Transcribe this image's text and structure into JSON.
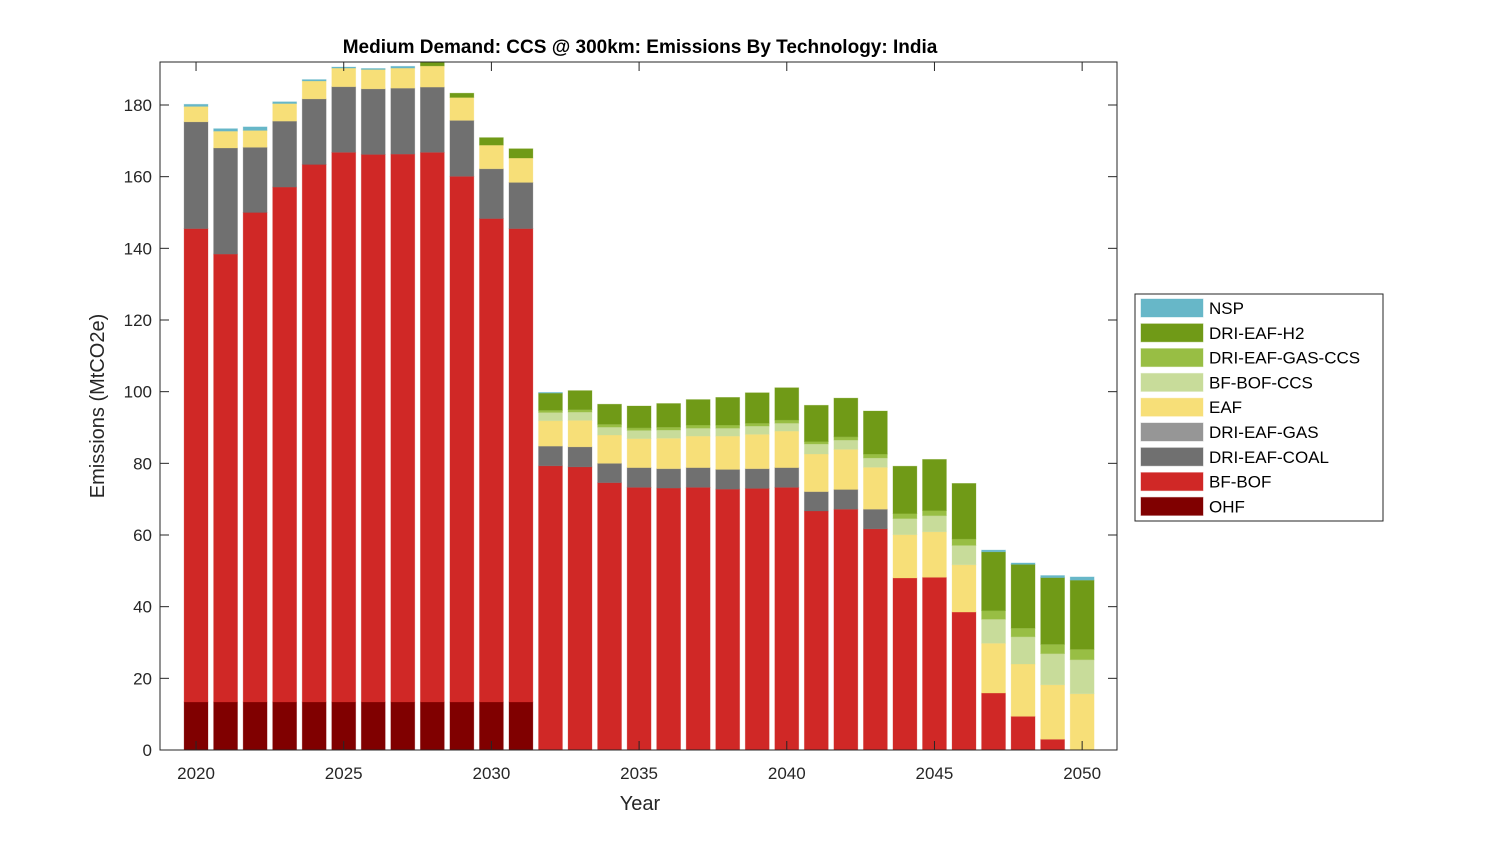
{
  "chart_data": {
    "type": "bar",
    "stacked": true,
    "title": "Medium Demand: CCS @ 300km: Emissions By Technology: India",
    "xlabel": "Year",
    "ylabel": "Emissions (MtCO2e)",
    "xlim": [
      2018.78,
      2051.18
    ],
    "ylim": [
      0,
      192
    ],
    "xticks": [
      2020,
      2025,
      2030,
      2035,
      2040,
      2045,
      2050
    ],
    "xtick_labels": [
      "2020",
      "2025",
      "2030",
      "2035",
      "2040",
      "2045",
      "2050"
    ],
    "yticks": [
      0,
      20,
      40,
      60,
      80,
      100,
      120,
      140,
      160,
      180
    ],
    "ytick_labels": [
      "0",
      "20",
      "40",
      "60",
      "80",
      "100",
      "120",
      "140",
      "160",
      "180"
    ],
    "grid": false,
    "legend_position": "outside-right",
    "x": [
      2020,
      2021,
      2022,
      2023,
      2024,
      2025,
      2026,
      2027,
      2028,
      2029,
      2030,
      2031,
      2032,
      2033,
      2034,
      2035,
      2036,
      2037,
      2038,
      2039,
      2040,
      2041,
      2042,
      2043,
      2044,
      2045,
      2046,
      2047,
      2048,
      2049,
      2050
    ],
    "series": [
      {
        "name": "OHF",
        "color": "#800000",
        "values": [
          13.4,
          13.4,
          13.4,
          13.4,
          13.4,
          13.4,
          13.4,
          13.4,
          13.4,
          13.4,
          13.4,
          13.4,
          0,
          0,
          0,
          0,
          0,
          0,
          0,
          0,
          0,
          0,
          0,
          0,
          0,
          0,
          0,
          0,
          0,
          0,
          0
        ]
      },
      {
        "name": "BF-BOF",
        "color": "#D02826",
        "values": [
          132.1,
          125.0,
          136.6,
          143.7,
          150.0,
          153.4,
          152.8,
          152.9,
          153.4,
          146.7,
          134.9,
          132.1,
          79.3,
          79.0,
          74.6,
          73.3,
          73.1,
          73.3,
          72.8,
          73.0,
          73.3,
          66.7,
          67.2,
          61.7,
          48.0,
          48.2,
          38.5,
          15.9,
          9.4,
          3.0,
          0
        ]
      },
      {
        "name": "DRI-EAF-COAL",
        "color": "#707070",
        "values": [
          29.8,
          29.6,
          18.2,
          18.4,
          18.3,
          18.3,
          18.3,
          18.4,
          18.2,
          15.6,
          13.9,
          12.9,
          5.5,
          5.6,
          5.4,
          5.5,
          5.4,
          5.5,
          5.5,
          5.5,
          5.5,
          5.4,
          5.5,
          5.5,
          0,
          0,
          0,
          0,
          0,
          0,
          0
        ]
      },
      {
        "name": "DRI-EAF-GAS",
        "color": "#969696",
        "values": [
          0,
          0,
          0,
          0,
          0,
          0,
          0,
          0,
          0,
          0,
          0,
          0,
          0,
          0,
          0,
          0,
          0,
          0,
          0,
          0,
          0,
          0,
          0,
          0,
          0,
          0,
          0,
          0,
          0,
          0,
          0
        ]
      },
      {
        "name": "EAF",
        "color": "#F7DF78",
        "values": [
          4.3,
          4.7,
          4.7,
          4.9,
          5.0,
          5.2,
          5.4,
          5.6,
          5.9,
          6.4,
          6.6,
          6.8,
          7.1,
          7.4,
          7.9,
          8.1,
          8.5,
          8.8,
          9.3,
          9.6,
          10.2,
          10.5,
          11.2,
          11.7,
          12.1,
          12.7,
          13.2,
          13.9,
          14.6,
          15.2,
          15.7
        ]
      },
      {
        "name": "BF-BOF-CCS",
        "color": "#C8DC9A",
        "values": [
          0,
          0,
          0,
          0,
          0,
          0,
          0,
          0,
          0,
          0,
          0,
          0,
          2.3,
          2.3,
          2.2,
          2.3,
          2.3,
          2.2,
          2.2,
          2.3,
          2.2,
          2.8,
          2.6,
          2.6,
          4.5,
          4.5,
          5.4,
          6.7,
          7.6,
          8.7,
          9.5
        ]
      },
      {
        "name": "DRI-EAF-GAS-CCS",
        "color": "#98BE44",
        "values": [
          0,
          0,
          0,
          0,
          0,
          0,
          0,
          0,
          0,
          0,
          0,
          0,
          0.6,
          0.7,
          0.8,
          0.7,
          0.8,
          0.9,
          0.9,
          0.8,
          0.9,
          0.7,
          0.9,
          1.1,
          1.4,
          1.4,
          1.8,
          2.4,
          2.4,
          2.6,
          2.9
        ]
      },
      {
        "name": "DRI-EAF-H2",
        "color": "#709A17",
        "values": [
          0,
          0,
          0,
          0,
          0,
          0,
          0,
          0,
          1.6,
          1.2,
          2.1,
          2.6,
          4.8,
          5.3,
          5.6,
          6.1,
          6.6,
          7.1,
          7.7,
          8.5,
          9.0,
          10.1,
          10.8,
          12.0,
          13.2,
          14.3,
          15.5,
          16.4,
          17.8,
          18.6,
          19.3
        ]
      },
      {
        "name": "NSP",
        "color": "#67B7C8",
        "values": [
          0.6,
          0.7,
          1.0,
          0.5,
          0.4,
          0.3,
          0.3,
          0.5,
          0,
          0,
          0,
          0,
          0.2,
          0,
          0,
          0,
          0,
          0,
          0,
          0,
          0,
          0,
          0,
          0,
          0,
          0,
          0,
          0.5,
          0.4,
          0.6,
          0.9
        ]
      }
    ],
    "legend_order": [
      "NSP",
      "DRI-EAF-H2",
      "DRI-EAF-GAS-CCS",
      "BF-BOF-CCS",
      "EAF",
      "DRI-EAF-GAS",
      "DRI-EAF-COAL",
      "BF-BOF",
      "OHF"
    ]
  }
}
